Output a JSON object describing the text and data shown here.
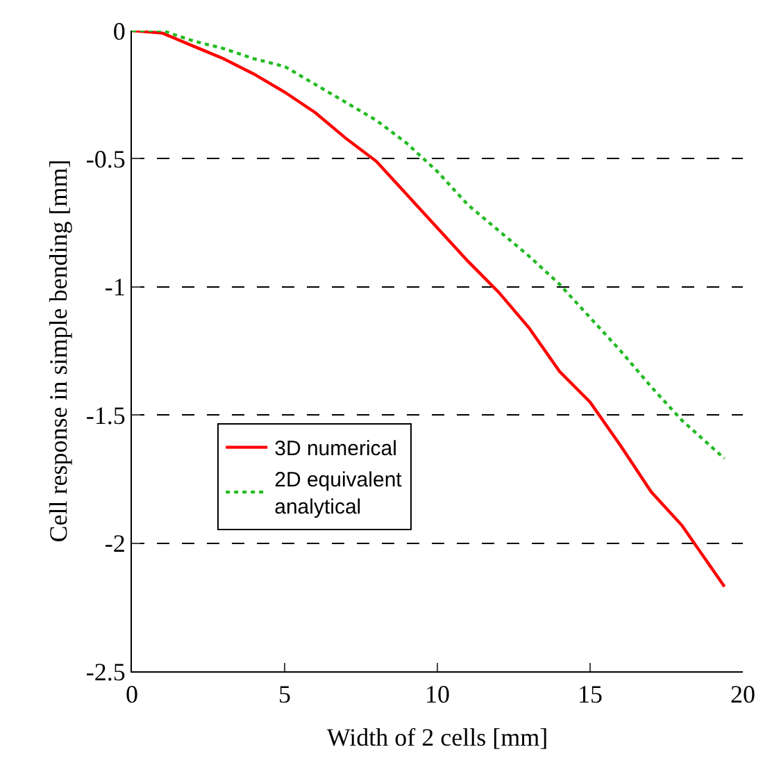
{
  "chart_data": {
    "type": "line",
    "xlabel": "Width of 2 cells [mm]",
    "ylabel": "Cell response in simple bending [mm]",
    "xlim": [
      0,
      20
    ],
    "ylim": [
      -2.5,
      0
    ],
    "xticks": [
      0,
      5,
      10,
      15,
      20
    ],
    "yticks": [
      -2.5,
      -2,
      -1.5,
      -1,
      -0.5,
      0
    ],
    "grid": "y",
    "legend": "bottom left",
    "series": [
      {
        "name": "3D numerical",
        "color": "#ff0000",
        "line_style": "solid",
        "x": [
          0,
          1,
          2,
          3,
          4,
          5,
          6,
          7,
          8,
          9,
          10,
          11,
          12,
          13,
          14,
          15,
          16,
          17,
          18,
          19.4
        ],
        "values": [
          0,
          -0.01,
          -0.06,
          -0.11,
          -0.17,
          -0.24,
          -0.32,
          -0.42,
          -0.51,
          -0.64,
          -0.77,
          -0.9,
          -1.02,
          -1.16,
          -1.33,
          -1.45,
          -1.62,
          -1.8,
          -1.93,
          -2.17
        ]
      },
      {
        "name": "2D equivalent\nanalytical",
        "color": "#22bb22",
        "line_style": "dotted",
        "x": [
          0,
          1,
          2,
          3,
          4,
          5,
          6,
          7,
          8,
          9,
          10,
          11,
          12,
          13,
          14,
          15,
          16,
          17,
          18,
          19.4
        ],
        "values": [
          0,
          0,
          -0.04,
          -0.07,
          -0.11,
          -0.14,
          -0.21,
          -0.28,
          -0.35,
          -0.44,
          -0.55,
          -0.68,
          -0.78,
          -0.88,
          -0.99,
          -1.12,
          -1.25,
          -1.39,
          -1.52,
          -1.67
        ]
      }
    ]
  }
}
